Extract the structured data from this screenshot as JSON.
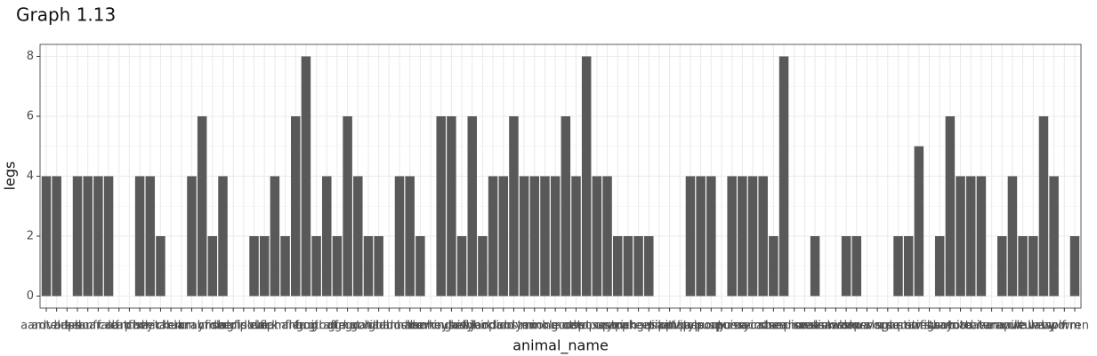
{
  "chart_data": {
    "type": "bar",
    "title": "Graph 1.13",
    "x_label": "animal_name",
    "y_label": "legs",
    "categories": [
      "aardvark",
      "antelope",
      "bass",
      "bear",
      "boar",
      "buffalo",
      "calf",
      "carp",
      "catfish",
      "cavy",
      "cheetah",
      "chicken",
      "chub",
      "clam",
      "crab",
      "crayfish",
      "crow",
      "deer",
      "dogfish",
      "dolphin",
      "dove",
      "duck",
      "elephant",
      "flamingo",
      "flea",
      "frog",
      "fruitbat",
      "giraffe",
      "girl",
      "gnat",
      "goat",
      "gorilla",
      "gull",
      "haddock",
      "hamster",
      "hare",
      "hawk",
      "herring",
      "honeybee",
      "housefly",
      "kiwi",
      "ladybird",
      "lark",
      "leopard",
      "lion",
      "lobster",
      "lynx",
      "mink",
      "mole",
      "mongoose",
      "moth",
      "newt",
      "octopus",
      "opossum",
      "oryx",
      "ostrich",
      "parakeet",
      "penguin",
      "pheasant",
      "pike",
      "piranha",
      "pitviper",
      "platypus",
      "polecat",
      "pony",
      "porpoise",
      "puma",
      "pussycat",
      "raccoon",
      "reindeer",
      "rhea",
      "scorpion",
      "seahorse",
      "seal",
      "sealion",
      "seasnake",
      "seawasp",
      "skimmer",
      "skua",
      "slowworm",
      "slug",
      "sole",
      "sparrow",
      "squirrel",
      "starfish",
      "stingray",
      "swan",
      "termite",
      "toad",
      "tortoise",
      "tuatara",
      "tuna",
      "vampire",
      "vole",
      "vulture",
      "wallaby",
      "wasp",
      "wolf",
      "worm",
      "wren"
    ],
    "values": [
      4,
      4,
      0,
      4,
      4,
      4,
      4,
      0,
      0,
      4,
      4,
      2,
      0,
      0,
      4,
      6,
      2,
      4,
      0,
      0,
      2,
      2,
      4,
      2,
      6,
      8,
      2,
      4,
      2,
      6,
      4,
      2,
      2,
      0,
      4,
      4,
      2,
      0,
      6,
      6,
      2,
      6,
      2,
      4,
      4,
      6,
      4,
      4,
      4,
      4,
      6,
      4,
      8,
      4,
      4,
      2,
      2,
      2,
      2,
      0,
      0,
      0,
      4,
      4,
      4,
      0,
      4,
      4,
      4,
      4,
      2,
      8,
      0,
      0,
      2,
      0,
      0,
      2,
      2,
      0,
      0,
      0,
      2,
      2,
      5,
      0,
      2,
      6,
      4,
      4,
      4,
      0,
      2,
      4,
      2,
      2,
      6,
      4,
      0,
      2
    ],
    "color": "#595959",
    "ylim": [
      -0.4,
      8.4
    ],
    "yticks": [
      0,
      2,
      4,
      6,
      8
    ],
    "minor_yticks": [
      1,
      3,
      5,
      7
    ],
    "grid": true
  }
}
